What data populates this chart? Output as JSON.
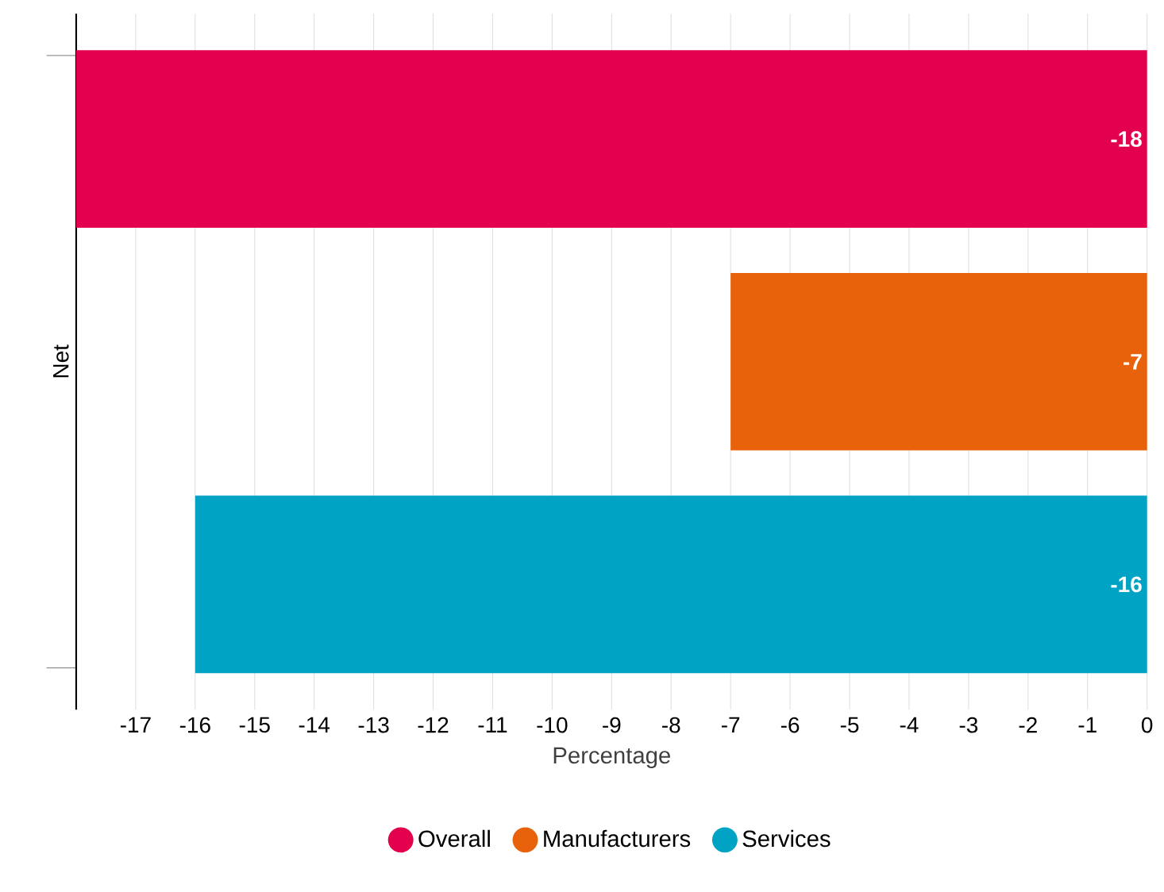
{
  "chart_data": {
    "type": "bar",
    "orientation": "horizontal",
    "categories": [
      "Net"
    ],
    "xlabel": "Percentage",
    "series": [
      {
        "name": "Overall",
        "color": "#e3004f",
        "values": [
          -18
        ]
      },
      {
        "name": "Manufacturers",
        "color": "#e8620c",
        "values": [
          -7
        ]
      },
      {
        "name": "Services",
        "color": "#00a3c4",
        "values": [
          -16
        ]
      }
    ],
    "xlim": [
      -18,
      0
    ],
    "xticks": [
      -17,
      -16,
      -15,
      -14,
      -13,
      -12,
      -11,
      -10,
      -9,
      -8,
      -7,
      -6,
      -5,
      -4,
      -3,
      -2,
      -1,
      0
    ],
    "grid": "x",
    "legend": "bottom",
    "data_labels": true
  }
}
